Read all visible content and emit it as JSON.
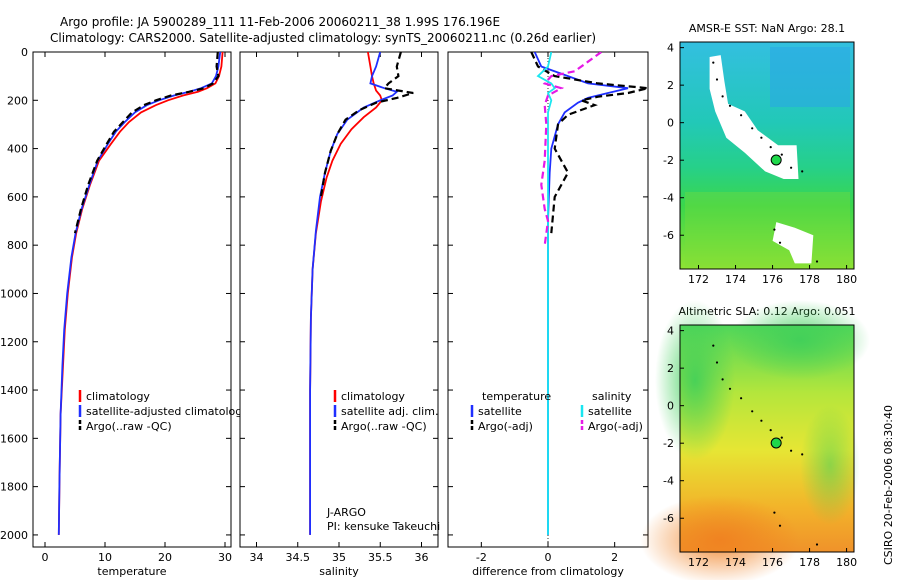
{
  "header": {
    "line1": "Argo profile: JA 5900289_111 11-Feb-2006 20060211_38 1.99S 176.196E",
    "line2": "Climatology: CARS2000. Satellite-adjusted climatology: synTS_20060211.nc (0.26d earlier)"
  },
  "side_label": "CSIRO 20-Feb-2006 08:30:40",
  "pi_label": {
    "line1": "J-ARGO",
    "line2": "PI: kensuke Takeuchi"
  },
  "colors": {
    "red": "#ff0000",
    "blue": "#1f2fff",
    "black": "#000000",
    "cyan": "#19e6f0",
    "magenta": "#e619e6"
  },
  "chart_data": [
    {
      "id": "temperature",
      "type": "line",
      "xlabel": "temperature",
      "ylabel": "",
      "xlim": [
        -2,
        31
      ],
      "ylim": [
        2050,
        0
      ],
      "xticks": [
        0,
        10,
        20,
        30
      ],
      "yticks": [
        0,
        200,
        400,
        600,
        800,
        1000,
        1200,
        1400,
        1600,
        1800,
        2000
      ],
      "legend": [
        "climatology",
        "satellite-adjusted climatology",
        "Argo(..raw -QC)"
      ],
      "series": [
        {
          "name": "climatology",
          "color": "red",
          "dash": false,
          "x": [
            29.6,
            29.4,
            29.0,
            28.4,
            27.0,
            25.5,
            23.0,
            20.5,
            18.5,
            16.0,
            14.0,
            12.5,
            11.0,
            9.0,
            7.5,
            6.2,
            5.2,
            4.5,
            3.8,
            3.3,
            3.0,
            2.6,
            2.4,
            2.3
          ],
          "y": [
            0,
            60,
            100,
            130,
            150,
            165,
            180,
            200,
            220,
            250,
            290,
            330,
            380,
            450,
            550,
            650,
            750,
            850,
            1000,
            1150,
            1300,
            1500,
            1800,
            2000
          ]
        },
        {
          "name": "satellite-adjusted climatology",
          "color": "blue",
          "dash": false,
          "x": [
            29.2,
            28.9,
            28.5,
            27.8,
            26.0,
            24.0,
            21.5,
            19.0,
            17.0,
            15.0,
            13.3,
            11.8,
            10.5,
            8.8,
            7.4,
            6.1,
            5.1,
            4.4,
            3.7,
            3.2,
            2.9,
            2.6,
            2.4,
            2.3
          ],
          "y": [
            0,
            60,
            100,
            130,
            150,
            165,
            180,
            200,
            220,
            250,
            290,
            330,
            380,
            450,
            550,
            650,
            750,
            850,
            1000,
            1150,
            1300,
            1500,
            1800,
            2000
          ]
        },
        {
          "name": "Argo(..raw -QC)",
          "color": "black",
          "dash": true,
          "x": [
            28.8,
            28.6,
            28.9,
            28.0,
            26.5,
            24.0,
            21.0,
            18.5,
            16.5,
            14.5,
            13.0,
            11.5,
            10.3,
            8.7,
            7.2,
            6.0,
            5.0
          ],
          "y": [
            0,
            60,
            100,
            130,
            150,
            165,
            180,
            200,
            220,
            250,
            290,
            330,
            380,
            450,
            550,
            650,
            750
          ]
        }
      ]
    },
    {
      "id": "salinity",
      "type": "line",
      "xlabel": "salinity",
      "ylabel": "",
      "xlim": [
        33.8,
        36.2
      ],
      "ylim": [
        2050,
        0
      ],
      "xticks": [
        34,
        34.5,
        35,
        35.5,
        36
      ],
      "xtick_labels": [
        "34",
        "34.5",
        "35",
        "35.5",
        "36"
      ],
      "legend": [
        "climatology",
        "satellite adj. clim.",
        "Argo(..raw -QC)"
      ],
      "series": [
        {
          "name": "climatology",
          "color": "red",
          "dash": false,
          "x": [
            35.35,
            35.38,
            35.4,
            35.42,
            35.45,
            35.5,
            35.52,
            35.45,
            35.3,
            35.15,
            35.02,
            34.92,
            34.85,
            34.78,
            34.72,
            34.68,
            34.66,
            34.65,
            34.65,
            34.65
          ],
          "y": [
            0,
            60,
            100,
            130,
            160,
            180,
            200,
            230,
            270,
            320,
            380,
            450,
            520,
            620,
            750,
            900,
            1100,
            1400,
            1700,
            2000
          ]
        },
        {
          "name": "satellite adj. clim.",
          "color": "blue",
          "dash": false,
          "x": [
            35.5,
            35.45,
            35.4,
            35.38,
            35.55,
            35.7,
            35.65,
            35.5,
            35.3,
            35.1,
            34.98,
            34.9,
            34.83,
            34.77,
            34.72,
            34.68,
            34.66,
            34.65,
            34.65,
            34.65
          ],
          "y": [
            0,
            60,
            100,
            130,
            150,
            165,
            180,
            200,
            230,
            280,
            340,
            410,
            500,
            600,
            740,
            900,
            1100,
            1400,
            1700,
            2000
          ]
        },
        {
          "name": "Argo(..raw -QC)",
          "color": "black",
          "dash": true,
          "x": [
            35.75,
            35.7,
            35.72,
            35.6,
            35.55,
            35.9,
            35.7,
            35.45,
            35.25,
            35.08,
            34.98,
            34.9,
            34.83,
            34.78
          ],
          "y": [
            0,
            60,
            100,
            130,
            150,
            170,
            190,
            210,
            240,
            280,
            340,
            410,
            500,
            600
          ]
        }
      ]
    },
    {
      "id": "difference",
      "type": "line",
      "xlabel": "difference from climatology",
      "ylabel": "",
      "xlim": [
        -3,
        3
      ],
      "ylim": [
        2050,
        0
      ],
      "xticks": [
        -2,
        0,
        2
      ],
      "legend": [
        "temperature",
        "satellite",
        "Argo(-adj)",
        "salinity",
        "satellite",
        "Argo(-adj)"
      ],
      "series": [
        {
          "name": "temperature satellite",
          "color": "blue",
          "dash": false,
          "x": [
            -0.4,
            -0.2,
            0.6,
            1.2,
            2.4,
            1.8,
            1.2,
            0.9,
            0.5,
            0.3,
            0.1,
            0.05,
            0.0,
            0.0,
            0.0,
            0.0
          ],
          "y": [
            0,
            60,
            100,
            130,
            150,
            170,
            190,
            210,
            250,
            300,
            400,
            500,
            700,
            1000,
            1500,
            2000
          ]
        },
        {
          "name": "temperature Argo(-adj)",
          "color": "black",
          "dash": true,
          "x": [
            -0.5,
            -0.3,
            0.2,
            1.5,
            3.0,
            2.4,
            1.5,
            1.0,
            1.4,
            0.6,
            0.3,
            0.2,
            0.6,
            0.2,
            0.1
          ],
          "y": [
            0,
            60,
            100,
            130,
            150,
            170,
            185,
            200,
            220,
            260,
            300,
            400,
            500,
            600,
            750
          ]
        },
        {
          "name": "salinity satellite",
          "color": "cyan",
          "dash": false,
          "x": [
            0.1,
            0.0,
            -0.3,
            0.1,
            0.2,
            0.0,
            0.1,
            0.0,
            0.0,
            0.0,
            0.0,
            0.0,
            0.0
          ],
          "y": [
            0,
            60,
            100,
            130,
            150,
            170,
            200,
            250,
            350,
            500,
            800,
            1200,
            2000
          ]
        },
        {
          "name": "salinity Argo(-adj)",
          "color": "magenta",
          "dash": true,
          "x": [
            1.6,
            1.2,
            0.8,
            0.1,
            -0.1,
            0.4,
            0.0,
            -0.1,
            -0.05,
            -0.1,
            -0.2,
            -0.1,
            0.0,
            -0.1
          ],
          "y": [
            0,
            40,
            80,
            100,
            130,
            150,
            180,
            220,
            300,
            450,
            550,
            650,
            700,
            800
          ]
        }
      ]
    },
    {
      "id": "amsre-sst",
      "type": "heatmap",
      "title": "AMSR-E SST: NaN Argo: 28.1",
      "xlim": [
        171,
        180.4
      ],
      "ylim": [
        -7.8,
        4.3
      ],
      "xticks": [
        172,
        174,
        176,
        178,
        180
      ],
      "yticks": [
        4,
        2,
        0,
        -2,
        -4,
        -6
      ],
      "argo_position": {
        "lon": 176.196,
        "lat": -1.99
      }
    },
    {
      "id": "altimetric-sla",
      "type": "heatmap",
      "title": "Altimetric SLA: 0.12 Argo: 0.051",
      "xlim": [
        171,
        180.4
      ],
      "ylim": [
        -7.8,
        4.3
      ],
      "xticks": [
        172,
        174,
        176,
        178,
        180
      ],
      "yticks": [
        4,
        2,
        0,
        -2,
        -4,
        -6
      ],
      "argo_position": {
        "lon": 176.196,
        "lat": -1.99
      }
    }
  ]
}
